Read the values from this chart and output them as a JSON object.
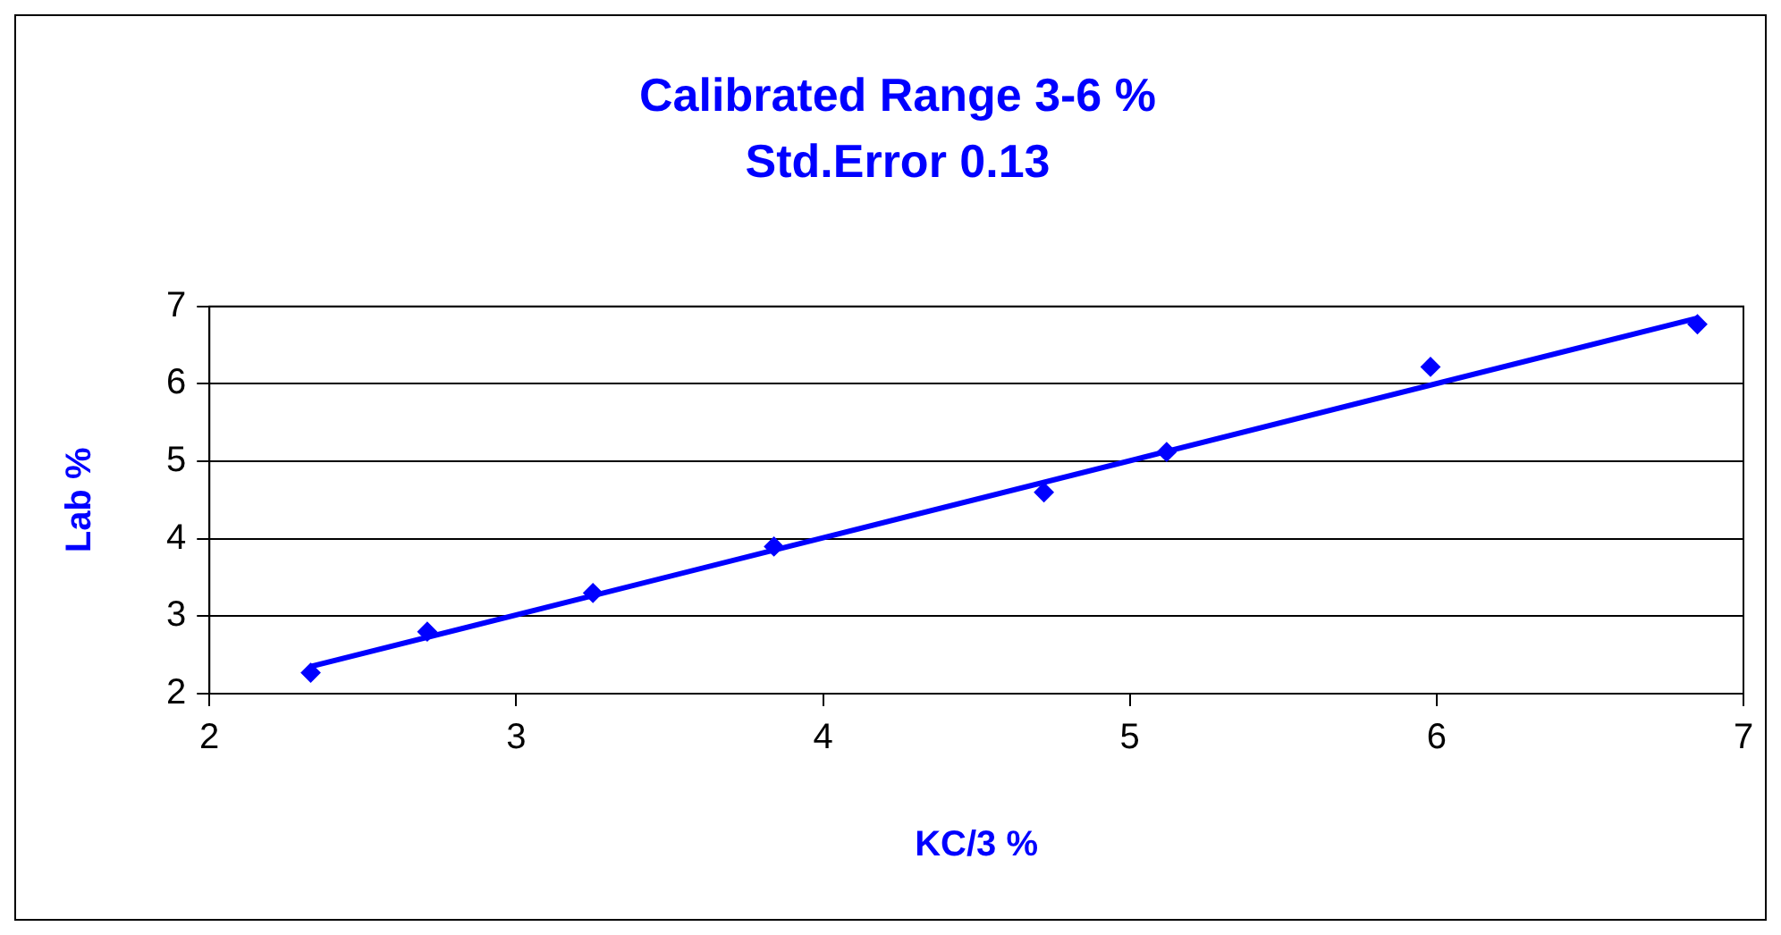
{
  "chart_data": {
    "type": "scatter",
    "title": "Calibrated Range 3-6 %",
    "subtitle": "Std.Error 0.13",
    "xlabel": "KC/3 %",
    "ylabel": "Lab %",
    "series": [
      {
        "color": "#0000ff",
        "x": [
          2.33,
          2.71,
          3.25,
          3.84,
          4.72,
          5.12,
          5.98,
          6.85
        ],
        "values": [
          2.27,
          2.8,
          3.3,
          3.9,
          4.6,
          5.12,
          6.22,
          6.77
        ]
      },
      {
        "type": "line",
        "marker": "none",
        "color": "#0000ff",
        "x": [
          2.33,
          6.85
        ],
        "values": [
          2.35,
          6.85
        ]
      }
    ],
    "xlim": [
      2,
      7
    ],
    "xticks": [
      2,
      3,
      4,
      5,
      6,
      7
    ],
    "ylim": [
      2,
      7
    ],
    "yticks": [
      2,
      3,
      4,
      5,
      6,
      7
    ],
    "grid": "y",
    "legend": false,
    "marker": "diamond"
  }
}
